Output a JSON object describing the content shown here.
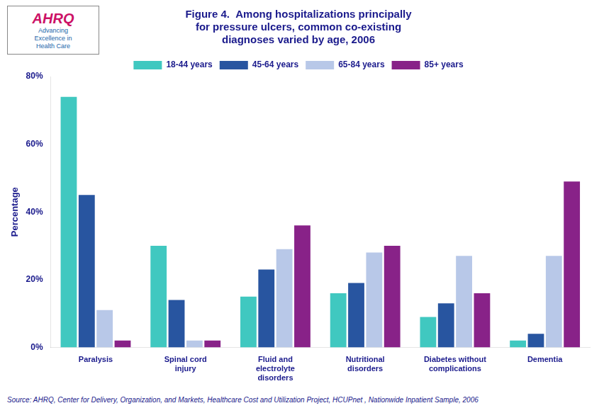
{
  "chart_data": {
    "type": "bar",
    "title": "Figure 4.  Among hospitalizations principally\nfor pressure ulcers, common co-existing\ndiagnoses varied by age, 2006",
    "categories": [
      "Paralysis",
      "Spinal cord\ninjury",
      "Fluid and\nelectrolyte\ndisorders",
      "Nutritional\ndisorders",
      "Diabetes without\ncomplications",
      "Dementia"
    ],
    "series": [
      {
        "name": "18-44 years",
        "color": "#40C8C0",
        "values": [
          74,
          30,
          15,
          16,
          9,
          2
        ]
      },
      {
        "name": "45-64 years",
        "color": "#2855A0",
        "values": [
          45,
          14,
          23,
          19,
          13,
          4
        ]
      },
      {
        "name": "65-84 years",
        "color": "#B8C8E8",
        "values": [
          11,
          2,
          29,
          28,
          27,
          27
        ]
      },
      {
        "name": "85+ years",
        "color": "#882288",
        "values": [
          2,
          2,
          36,
          30,
          16,
          49
        ]
      }
    ],
    "y_label": "Percentage",
    "ylim": [
      0,
      80
    ],
    "yticks": [
      {
        "value": 0,
        "label": "0%"
      },
      {
        "value": 20,
        "label": "20%"
      },
      {
        "value": 40,
        "label": "40%"
      },
      {
        "value": 60,
        "label": "60%"
      },
      {
        "value": 80,
        "label": "80%"
      }
    ],
    "grid": false,
    "legend": "top",
    "annotations": [
      "AHRQ",
      "Advancing\nExcellence in\nHealth Care"
    ],
    "source": "Source: AHRQ, Center for Delivery, Organization, and Markets, Healthcare Cost and Utilization Project, HCUPnet , Nationwide Inpatient Sample, 2006"
  }
}
